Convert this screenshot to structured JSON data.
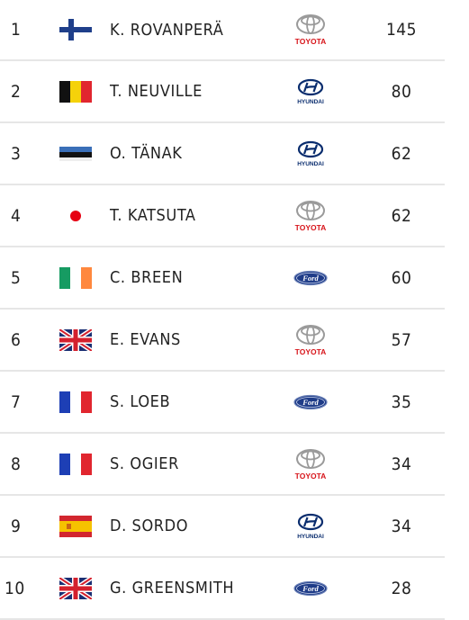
{
  "standings": [
    {
      "pos": "1",
      "flag": "finland-flag-icon",
      "driver": "K. ROVANPERÄ",
      "team": "toyota-logo-icon",
      "team_text": "TOYOTA",
      "points": "145"
    },
    {
      "pos": "2",
      "flag": "belgium-flag-icon",
      "driver": "T. NEUVILLE",
      "team": "hyundai-logo-icon",
      "team_text": "HYUNDAI",
      "points": "80"
    },
    {
      "pos": "3",
      "flag": "estonia-flag-icon",
      "driver": "O. TÄNAK",
      "team": "hyundai-logo-icon",
      "team_text": "HYUNDAI",
      "points": "62"
    },
    {
      "pos": "4",
      "flag": "japan-flag-icon",
      "driver": "T. KATSUTA",
      "team": "toyota-logo-icon",
      "team_text": "TOYOTA",
      "points": "62"
    },
    {
      "pos": "5",
      "flag": "ireland-flag-icon",
      "driver": "C. BREEN",
      "team": "ford-logo-icon",
      "team_text": "Ford",
      "points": "60"
    },
    {
      "pos": "6",
      "flag": "uk-flag-icon",
      "driver": "E. EVANS",
      "team": "toyota-logo-icon",
      "team_text": "TOYOTA",
      "points": "57"
    },
    {
      "pos": "7",
      "flag": "france-flag-icon",
      "driver": "S. LOEB",
      "team": "ford-logo-icon",
      "team_text": "Ford",
      "points": "35"
    },
    {
      "pos": "8",
      "flag": "france-flag-icon",
      "driver": "S. OGIER",
      "team": "toyota-logo-icon",
      "team_text": "TOYOTA",
      "points": "34"
    },
    {
      "pos": "9",
      "flag": "spain-flag-icon",
      "driver": "D. SORDO",
      "team": "hyundai-logo-icon",
      "team_text": "HYUNDAI",
      "points": "34"
    },
    {
      "pos": "10",
      "flag": "uk-flag-icon",
      "driver": "G. GREENSMITH",
      "team": "ford-logo-icon",
      "team_text": "Ford",
      "points": "28"
    }
  ],
  "colors": {
    "toyota_red": "#d7141a",
    "hyundai_blue": "#0a2d6e",
    "ford_blue": "#1f3c88",
    "divider": "#e6e6e6"
  }
}
